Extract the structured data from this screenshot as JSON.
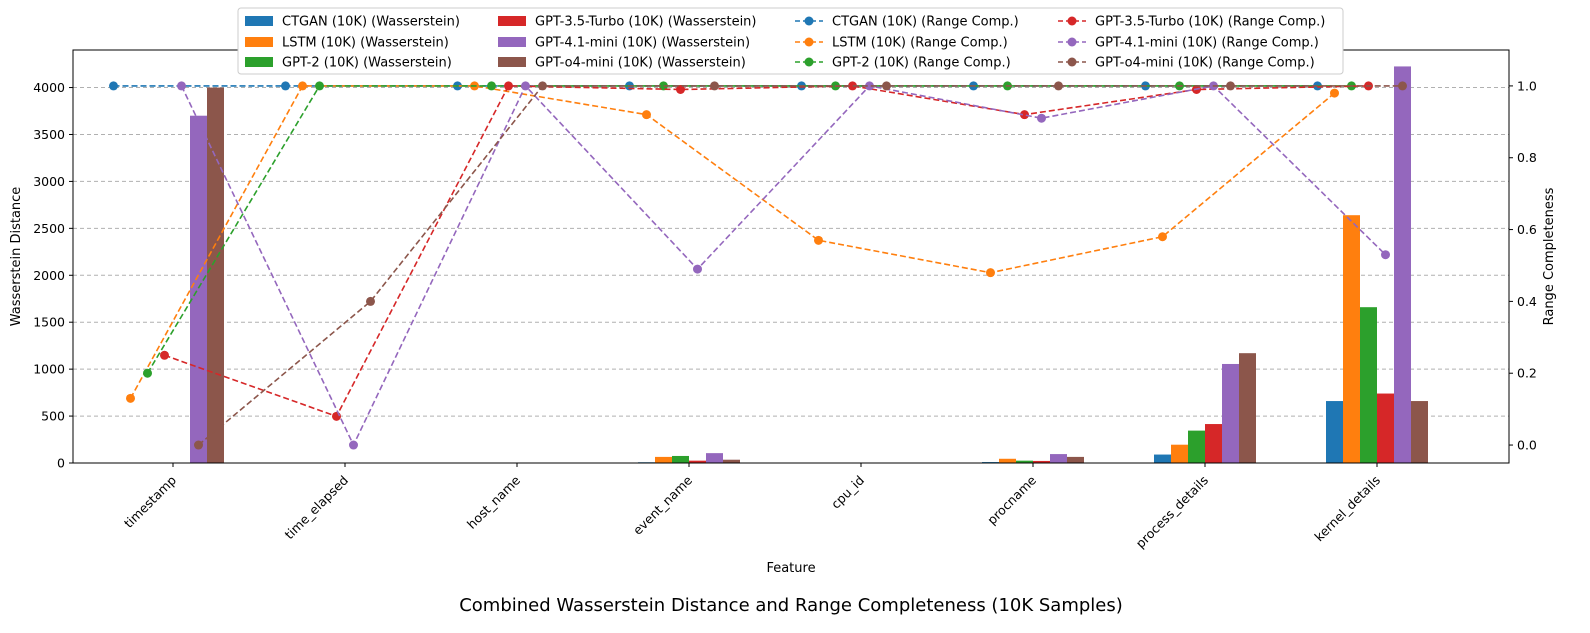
{
  "chart_data": {
    "type": "bar",
    "title": "Combined Wasserstein Distance and Range Completeness (10K Samples)",
    "xlabel": "Feature",
    "ylabel_left": "Wasserstein Distance",
    "ylabel_right": "Range Completeness",
    "categories": [
      "timestamp",
      "time_elapsed",
      "host_name",
      "event_name",
      "cpu_id",
      "procname",
      "process_details",
      "kernel_details"
    ],
    "ylim_left": [
      0,
      4400
    ],
    "yticks_left": [
      0,
      500,
      1000,
      1500,
      2000,
      2500,
      3000,
      3500,
      4000
    ],
    "ylim_right": [
      -0.05,
      1.1
    ],
    "yticks_right": [
      0.0,
      0.2,
      0.4,
      0.6,
      0.8,
      1.0
    ],
    "yticks_right_labels": [
      "0.0",
      "0.2",
      "0.4",
      "0.6",
      "0.8",
      "1.0"
    ],
    "grid": "horizontal dashed",
    "legend_position": "top-center",
    "bar_series": [
      {
        "name": "CTGAN (10K) (Wasserstein)",
        "color": "#1f77b4",
        "values": [
          0,
          0,
          0,
          8,
          0,
          10,
          90,
          660
        ]
      },
      {
        "name": "LSTM (10K) (Wasserstein)",
        "color": "#ff7f0e",
        "values": [
          0,
          0,
          0,
          65,
          0,
          45,
          195,
          2640
        ]
      },
      {
        "name": "GPT-2 (10K) (Wasserstein)",
        "color": "#2ca02c",
        "values": [
          0,
          0,
          0,
          75,
          0,
          25,
          345,
          1660
        ]
      },
      {
        "name": "GPT-3.5-Turbo (10K) (Wasserstein)",
        "color": "#d62728",
        "values": [
          0,
          0,
          0,
          25,
          0,
          22,
          415,
          740
        ]
      },
      {
        "name": "GPT-4.1-mini (10K) (Wasserstein)",
        "color": "#9467bd",
        "values": [
          3700,
          0,
          0,
          105,
          0,
          95,
          1055,
          4225
        ]
      },
      {
        "name": "GPT-o4-mini (10K) (Wasserstein)",
        "color": "#8c564b",
        "values": [
          4000,
          0,
          0,
          35,
          0,
          65,
          1170,
          660
        ]
      }
    ],
    "line_series": [
      {
        "name": "CTGAN (10K) (Range Comp.)",
        "color": "#1f77b4",
        "values": [
          1.0,
          1.0,
          1.0,
          1.0,
          1.0,
          1.0,
          1.0,
          1.0
        ]
      },
      {
        "name": "LSTM (10K) (Range Comp.)",
        "color": "#ff7f0e",
        "values": [
          0.13,
          1.0,
          1.0,
          0.92,
          0.57,
          0.48,
          0.58,
          0.98
        ]
      },
      {
        "name": "GPT-2 (10K) (Range Comp.)",
        "color": "#2ca02c",
        "values": [
          0.2,
          1.0,
          1.0,
          1.0,
          1.0,
          1.0,
          1.0,
          1.0
        ]
      },
      {
        "name": "GPT-3.5-Turbo (10K) (Range Comp.)",
        "color": "#d62728",
        "values": [
          0.25,
          0.08,
          1.0,
          0.99,
          1.0,
          0.92,
          0.99,
          1.0
        ]
      },
      {
        "name": "GPT-4.1-mini (10K) (Range Comp.)",
        "color": "#9467bd",
        "values": [
          1.0,
          0.0,
          1.0,
          0.49,
          1.0,
          0.91,
          1.0,
          0.53
        ]
      },
      {
        "name": "GPT-o4-mini (10K) (Range Comp.)",
        "color": "#8c564b",
        "values": [
          0.0,
          0.4,
          1.0,
          1.0,
          1.0,
          1.0,
          1.0,
          1.0
        ]
      }
    ]
  }
}
